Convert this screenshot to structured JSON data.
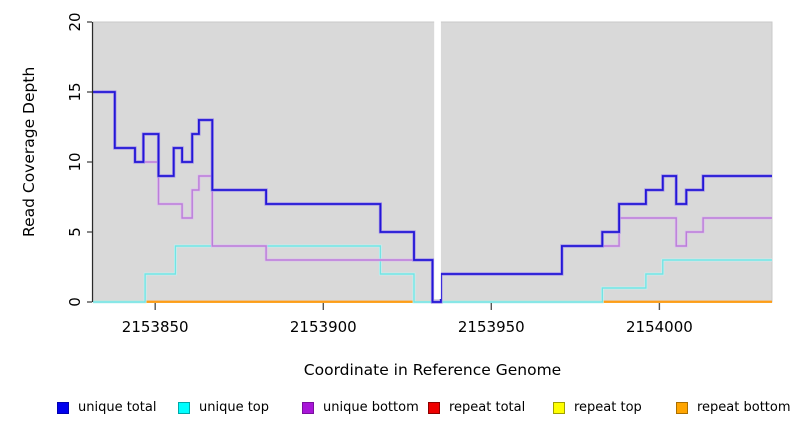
{
  "figure": {
    "background": "#ffffff",
    "panel_background": "#d9d9d9"
  },
  "axes": {
    "x": {
      "label": "Coordinate in Reference Genome",
      "tick_values": [
        2153850,
        2153900,
        2153950,
        2154000
      ],
      "tick_labels": [
        "2153850",
        "2153900",
        "2153950",
        "2154000"
      ]
    },
    "y": {
      "label": "Read Coverage Depth",
      "tick_values": [
        0,
        5,
        10,
        15,
        20
      ],
      "tick_labels": [
        "0",
        "5",
        "10",
        "15",
        "20"
      ]
    }
  },
  "chart_data": {
    "type": "line",
    "subtype": "step",
    "title": "",
    "xlabel": "Coordinate in Reference Genome",
    "ylabel": "Read Coverage Depth",
    "xlim": [
      2153831.5,
      2154033.5
    ],
    "ylim": [
      0,
      20
    ],
    "grid": false,
    "legend_position": "bottom",
    "gap_region": {
      "x0": 2153933,
      "x1": 2153935,
      "color": "#ffffff"
    },
    "series": [
      {
        "name": "unique total",
        "color": "#2317d6",
        "halo": "#a18fe8",
        "points": [
          [
            2153831.5,
            15
          ],
          [
            2153838,
            11
          ],
          [
            2153844,
            10
          ],
          [
            2153846.5,
            12
          ],
          [
            2153851,
            9
          ],
          [
            2153855.5,
            11
          ],
          [
            2153858,
            10
          ],
          [
            2153861,
            12
          ],
          [
            2153863,
            13
          ],
          [
            2153867,
            8
          ],
          [
            2153883,
            7
          ],
          [
            2153917,
            5
          ],
          [
            2153927,
            3
          ],
          [
            2153932.5,
            0
          ],
          [
            2153935,
            2
          ],
          [
            2153971,
            4
          ],
          [
            2153983,
            5
          ],
          [
            2153988,
            7
          ],
          [
            2153996,
            8
          ],
          [
            2154001,
            9
          ],
          [
            2154005,
            7
          ],
          [
            2154008,
            8
          ],
          [
            2154013,
            9
          ]
        ]
      },
      {
        "name": "unique top",
        "color": "#74e3e3",
        "halo": "#c4f2f2",
        "points": [
          [
            2153831.5,
            0
          ],
          [
            2153847,
            2
          ],
          [
            2153856,
            4
          ],
          [
            2153917,
            2
          ],
          [
            2153927,
            0
          ],
          [
            2153983,
            1
          ],
          [
            2153996,
            2
          ],
          [
            2154001,
            3
          ]
        ]
      },
      {
        "name": "unique bottom",
        "color": "#bb7fd8",
        "halo": "#ddbcee",
        "points": [
          [
            2153831.5,
            15
          ],
          [
            2153838,
            11
          ],
          [
            2153844,
            10
          ],
          [
            2153851,
            7
          ],
          [
            2153858,
            6
          ],
          [
            2153861,
            8
          ],
          [
            2153863,
            9
          ],
          [
            2153867,
            4
          ],
          [
            2153883,
            3
          ],
          [
            2153932.5,
            0
          ],
          [
            2153935,
            2
          ],
          [
            2153971,
            4
          ],
          [
            2153988,
            6
          ],
          [
            2154005,
            4
          ],
          [
            2154008,
            5
          ],
          [
            2154013,
            6
          ]
        ]
      },
      {
        "name": "repeat total",
        "color": "#dd1100",
        "halo": "#dd1100",
        "points": [
          [
            2153831.5,
            0
          ]
        ]
      },
      {
        "name": "repeat top",
        "color": "#eded2a",
        "halo": "#eded2a",
        "points": [
          [
            2153831.5,
            0
          ]
        ]
      },
      {
        "name": "repeat bottom",
        "color": "#ff9d17",
        "halo": "#ffc77e",
        "points": [
          [
            2153831.5,
            0
          ]
        ]
      }
    ],
    "zero_line_segments": [
      {
        "x0": 2153831.5,
        "x1": 2153847,
        "color": "#7cc87c"
      },
      {
        "x0": 2153847,
        "x1": 2153933,
        "color": "#ff9d17"
      },
      {
        "x0": 2153933,
        "x1": 2153983,
        "color": "#7cc87c"
      },
      {
        "x0": 2153983,
        "x1": 2154033.5,
        "color": "#ff9d17"
      }
    ]
  },
  "legend": {
    "items": [
      {
        "label": "unique total",
        "fill": "#0000ee",
        "border": "#0000b0"
      },
      {
        "label": "unique top",
        "fill": "#00ffff",
        "border": "#00a8a8"
      },
      {
        "label": "unique bottom",
        "fill": "#a816d8",
        "border": "#7a0f9e"
      },
      {
        "label": "repeat total",
        "fill": "#ee0000",
        "border": "#8b0000"
      },
      {
        "label": "repeat top",
        "fill": "#ffff00",
        "border": "#a0a000"
      },
      {
        "label": "repeat bottom",
        "fill": "#ffa500",
        "border": "#aa6e00"
      }
    ]
  }
}
